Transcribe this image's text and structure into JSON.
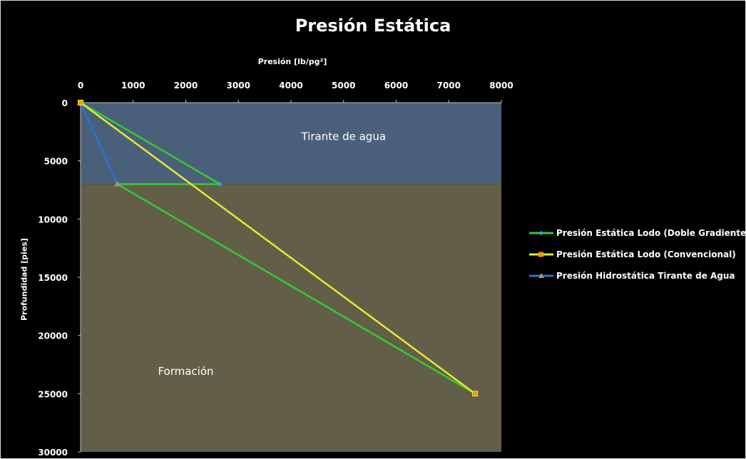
{
  "chart_data": {
    "type": "line",
    "title": "Presión Estática",
    "xlabel": "Presión [lb/pg²]",
    "ylabel": "Profundidad [pies]",
    "xlim": [
      0,
      8000
    ],
    "ylim": [
      0,
      30000
    ],
    "y_inverted": true,
    "x_axis_position": "top",
    "x_ticks": [
      0,
      1000,
      2000,
      3000,
      4000,
      5000,
      6000,
      7000,
      8000
    ],
    "y_ticks": [
      0,
      5000,
      10000,
      15000,
      20000,
      25000,
      30000
    ],
    "grid": false,
    "legend_position": "right",
    "regions": [
      {
        "label": "Tirante de agua",
        "y_range": [
          0,
          7000
        ],
        "color": "#4a607a"
      },
      {
        "label": "Formación",
        "y_range": [
          7000,
          30000
        ],
        "color": "#625e48"
      }
    ],
    "series": [
      {
        "name": "Presión Estática Lodo (Doble Gradiente)",
        "color": "#33cc33",
        "marker": "star",
        "points": [
          [
            0,
            0
          ],
          [
            2650,
            7000
          ],
          [
            700,
            7000
          ],
          [
            7500,
            25000
          ]
        ]
      },
      {
        "name": "Presión Estática Lodo (Convencional)",
        "color": "#e8e830",
        "marker": "square",
        "points": [
          [
            0,
            0
          ],
          [
            7500,
            25000
          ]
        ]
      },
      {
        "name": "Presión Hidrostática Tirante de Agua",
        "color": "#2f6fd6",
        "marker": "triangle",
        "points": [
          [
            0,
            0
          ],
          [
            700,
            7000
          ]
        ]
      }
    ]
  }
}
